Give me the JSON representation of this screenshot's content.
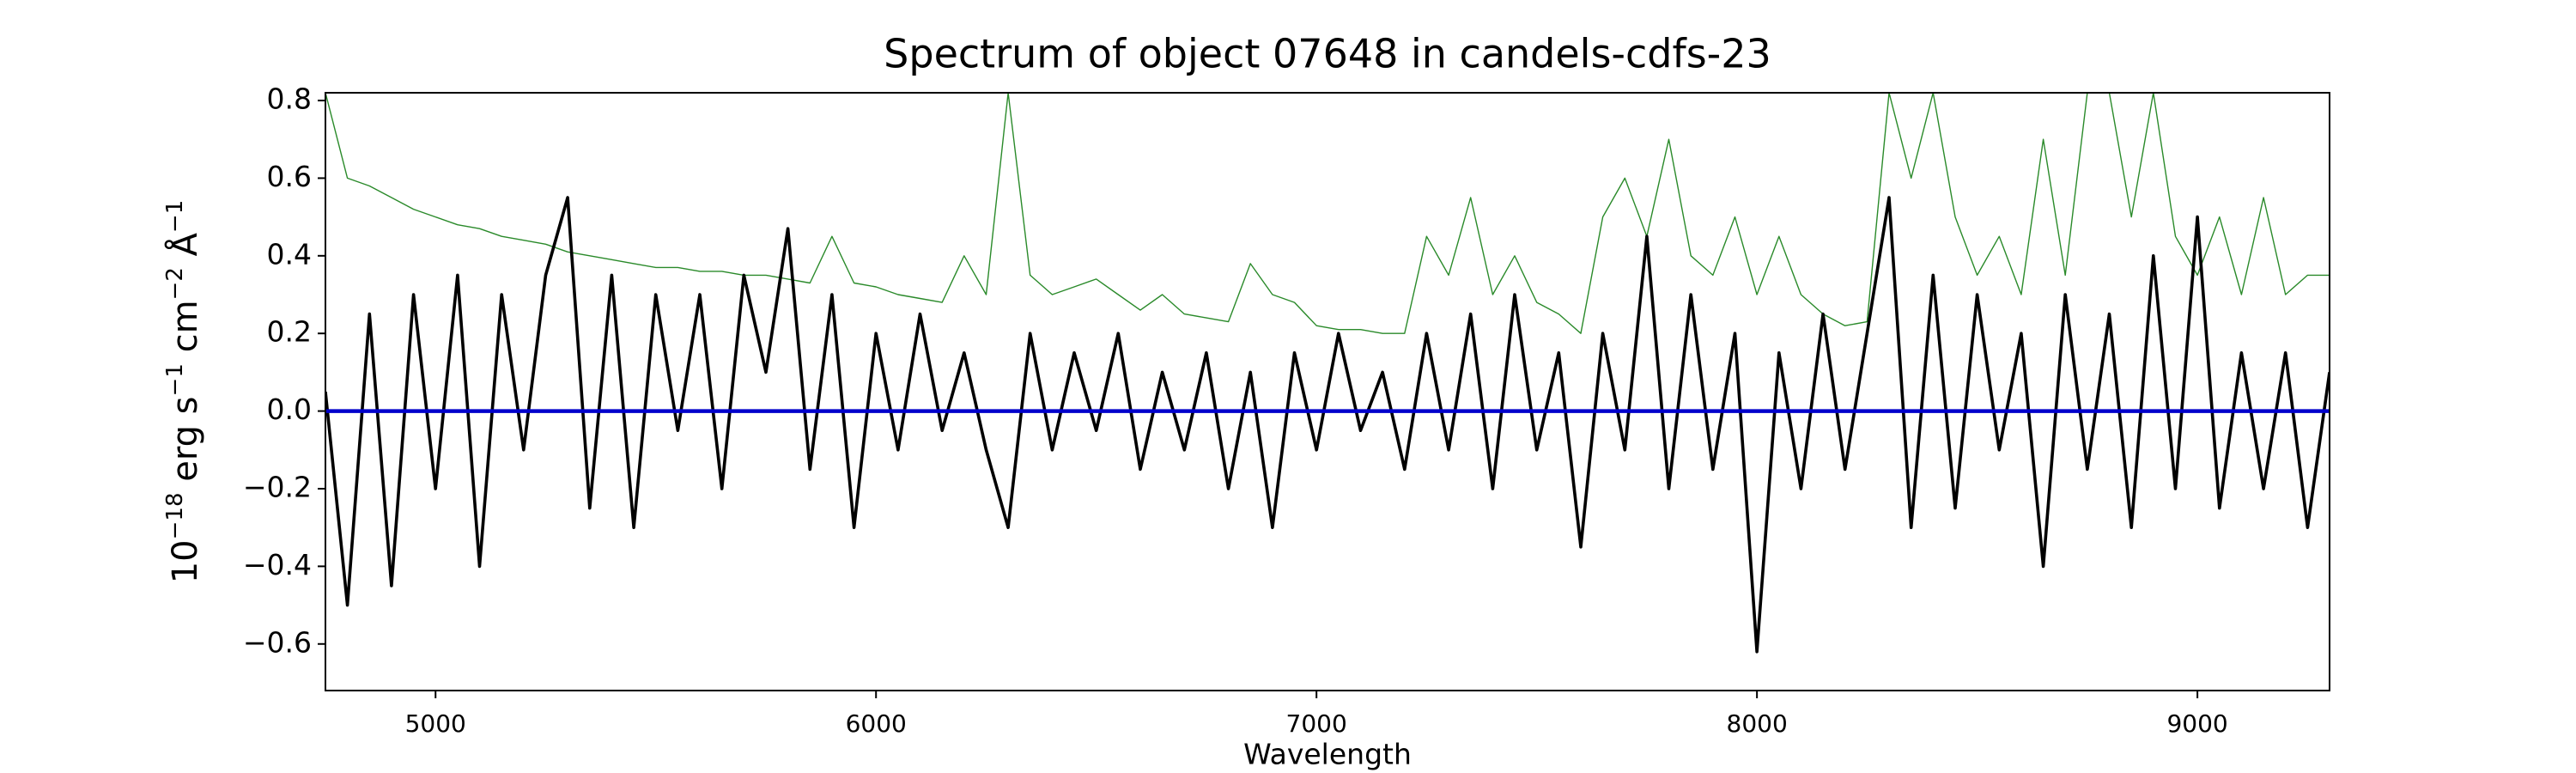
{
  "chart_data": {
    "type": "line",
    "title": "Spectrum of object 07648 in candels-cdfs-23",
    "xlabel": "Wavelength",
    "ylabel": [
      "10",
      "−18",
      " erg s",
      "−1",
      " cm",
      "−2",
      " Å",
      "−1"
    ],
    "xlim": [
      4750,
      9300
    ],
    "ylim": [
      -0.72,
      0.82
    ],
    "xticks": [
      5000,
      6000,
      7000,
      8000,
      9000
    ],
    "yticks": [
      {
        "value": -0.6,
        "label": "−0.6"
      },
      {
        "value": -0.4,
        "label": "−0.4"
      },
      {
        "value": -0.2,
        "label": "−0.2"
      },
      {
        "value": 0,
        "label": "0.0"
      },
      0.2,
      0.4,
      0.6,
      0.8
    ],
    "series": [
      {
        "color": "#2a8a2a",
        "width": 1.4,
        "x": [
          4750,
          4800,
          4850,
          4900,
          4950,
          5000,
          5050,
          5100,
          5150,
          5200,
          5250,
          5300,
          5350,
          5400,
          5450,
          5500,
          5550,
          5600,
          5650,
          5700,
          5750,
          5800,
          5850,
          5900,
          5950,
          6000,
          6050,
          6100,
          6150,
          6200,
          6250,
          6300,
          6350,
          6400,
          6450,
          6500,
          6550,
          6600,
          6650,
          6700,
          6750,
          6800,
          6850,
          6900,
          6950,
          7000,
          7050,
          7100,
          7150,
          7200,
          7250,
          7300,
          7350,
          7400,
          7450,
          7500,
          7550,
          7600,
          7650,
          7700,
          7750,
          7800,
          7850,
          7900,
          7950,
          8000,
          8050,
          8100,
          8150,
          8200,
          8250,
          8300,
          8350,
          8400,
          8450,
          8500,
          8550,
          8600,
          8650,
          8700,
          8750,
          8800,
          8850,
          8900,
          8950,
          9000,
          9050,
          9100,
          9150,
          9200,
          9250,
          9300
        ],
        "values": [
          0.82,
          0.6,
          0.58,
          0.55,
          0.52,
          0.5,
          0.48,
          0.47,
          0.45,
          0.44,
          0.43,
          0.41,
          0.4,
          0.39,
          0.38,
          0.37,
          0.37,
          0.36,
          0.36,
          0.35,
          0.35,
          0.34,
          0.33,
          0.45,
          0.33,
          0.32,
          0.3,
          0.29,
          0.28,
          0.4,
          0.3,
          0.82,
          0.35,
          0.3,
          0.32,
          0.34,
          0.3,
          0.26,
          0.3,
          0.25,
          0.24,
          0.23,
          0.38,
          0.3,
          0.28,
          0.22,
          0.21,
          0.21,
          0.2,
          0.2,
          0.45,
          0.35,
          0.55,
          0.3,
          0.4,
          0.28,
          0.25,
          0.2,
          0.5,
          0.6,
          0.45,
          0.7,
          0.4,
          0.35,
          0.5,
          0.3,
          0.45,
          0.3,
          0.25,
          0.22,
          0.23,
          0.82,
          0.6,
          0.82,
          0.5,
          0.35,
          0.45,
          0.3,
          0.7,
          0.35,
          0.82,
          0.82,
          0.5,
          0.82,
          0.45,
          0.35,
          0.5,
          0.3,
          0.55,
          0.3,
          0.35,
          0.35
        ]
      },
      {
        "color": "#000000",
        "width": 3.6,
        "x": [
          4750,
          4800,
          4850,
          4900,
          4950,
          5000,
          5050,
          5100,
          5150,
          5200,
          5250,
          5300,
          5350,
          5400,
          5450,
          5500,
          5550,
          5600,
          5650,
          5700,
          5750,
          5800,
          5850,
          5900,
          5950,
          6000,
          6050,
          6100,
          6150,
          6200,
          6250,
          6300,
          6350,
          6400,
          6450,
          6500,
          6550,
          6600,
          6650,
          6700,
          6750,
          6800,
          6850,
          6900,
          6950,
          7000,
          7050,
          7100,
          7150,
          7200,
          7250,
          7300,
          7350,
          7400,
          7450,
          7500,
          7550,
          7600,
          7650,
          7700,
          7750,
          7800,
          7850,
          7900,
          7950,
          8000,
          8050,
          8100,
          8150,
          8200,
          8250,
          8300,
          8350,
          8400,
          8450,
          8500,
          8550,
          8600,
          8650,
          8700,
          8750,
          8800,
          8850,
          8900,
          8950,
          9000,
          9050,
          9100,
          9150,
          9200,
          9250,
          9300
        ],
        "values": [
          0.05,
          -0.5,
          0.25,
          -0.45,
          0.3,
          -0.2,
          0.35,
          -0.4,
          0.3,
          -0.1,
          0.35,
          0.55,
          -0.25,
          0.35,
          -0.3,
          0.3,
          -0.05,
          0.3,
          -0.2,
          0.35,
          0.1,
          0.47,
          -0.15,
          0.3,
          -0.3,
          0.2,
          -0.1,
          0.25,
          -0.05,
          0.15,
          -0.1,
          -0.3,
          0.2,
          -0.1,
          0.15,
          -0.05,
          0.2,
          -0.15,
          0.1,
          -0.1,
          0.15,
          -0.2,
          0.1,
          -0.3,
          0.15,
          -0.1,
          0.2,
          -0.05,
          0.1,
          -0.15,
          0.2,
          -0.1,
          0.25,
          -0.2,
          0.3,
          -0.1,
          0.15,
          -0.35,
          0.2,
          -0.1,
          0.45,
          -0.2,
          0.3,
          -0.15,
          0.2,
          -0.62,
          0.15,
          -0.2,
          0.25,
          -0.15,
          0.2,
          0.55,
          -0.3,
          0.35,
          -0.25,
          0.3,
          -0.1,
          0.2,
          -0.4,
          0.3,
          -0.15,
          0.25,
          -0.3,
          0.4,
          -0.2,
          0.5,
          -0.25,
          0.15,
          -0.2,
          0.15,
          -0.3,
          0.1
        ]
      },
      {
        "color": "#0000cc",
        "width": 4.5,
        "x": [
          4750,
          9300
        ],
        "values": [
          0,
          0
        ]
      }
    ]
  }
}
